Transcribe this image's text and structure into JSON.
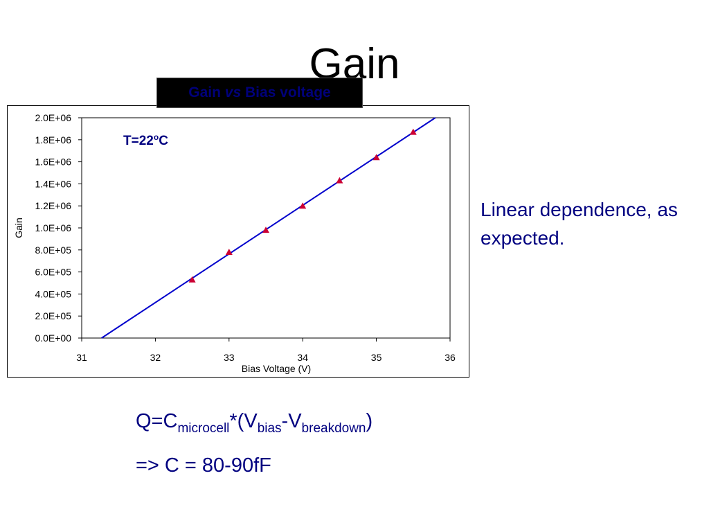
{
  "slide": {
    "title": "Gain",
    "side_note": "Linear dependence, as expected.",
    "formula": {
      "q": "Q=C",
      "sub1": "microcell",
      "mid": "*(V",
      "sub2": "bias",
      "dash": "-V",
      "sub3": "breakdown",
      "close": ")"
    },
    "result": "=> C = 80-90fF"
  },
  "chart_box": {
    "title_prefix": "Gain ",
    "title_italic": "vs",
    "title_suffix": " Bias voltage"
  },
  "chart_data": {
    "type": "scatter",
    "title": "Gain vs Bias voltage",
    "annotation": "T=22",
    "annotation_sup": "o",
    "annotation_unit": "C",
    "xlabel": "Bias Voltage (V)",
    "ylabel": "Gain",
    "xlim": [
      31,
      36
    ],
    "ylim": [
      0,
      2000000
    ],
    "xticks": [
      31,
      32,
      33,
      34,
      35,
      36
    ],
    "yticks": [
      0,
      200000,
      400000,
      600000,
      800000,
      1000000,
      1200000,
      1400000,
      1600000,
      1800000,
      2000000
    ],
    "ytick_labels": [
      "0.0E+00",
      "2.0E+05",
      "4.0E+05",
      "6.0E+05",
      "8.0E+05",
      "1.0E+06",
      "1.2E+06",
      "1.4E+06",
      "1.6E+06",
      "1.8E+06",
      "2.0E+06"
    ],
    "series": [
      {
        "kind": "points",
        "color": "#cc0033",
        "marker": "triangle",
        "x": [
          32.5,
          33.0,
          33.5,
          34.0,
          34.5,
          35.0,
          35.5
        ],
        "y": [
          530000,
          780000,
          980000,
          1200000,
          1430000,
          1640000,
          1870000
        ]
      },
      {
        "kind": "fit-line",
        "color": "#0000cc",
        "x": [
          31.27,
          35.8
        ],
        "y": [
          0,
          2000000
        ]
      }
    ],
    "grid": false
  }
}
